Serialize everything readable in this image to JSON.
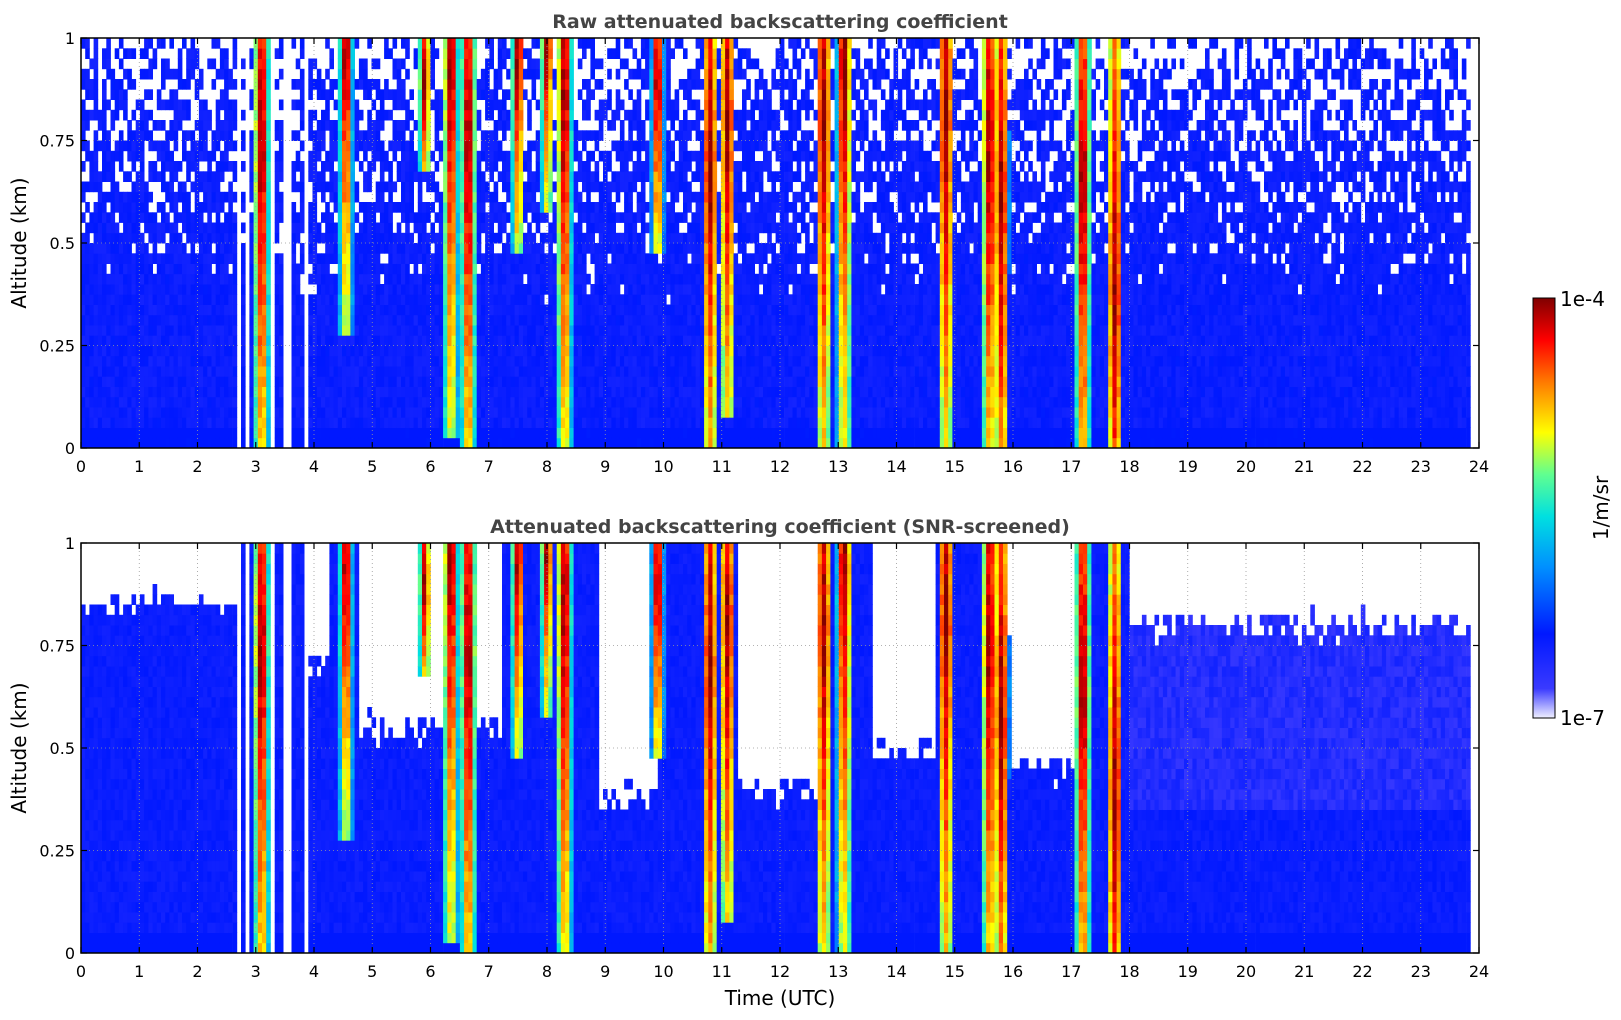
{
  "chart_data": [
    {
      "type": "heatmap",
      "title": "Raw attenuated backscattering coefficient",
      "xlabel": "",
      "ylabel": "Altitude (km)",
      "xlim": [
        0,
        24
      ],
      "ylim": [
        0,
        1
      ],
      "xticks": [
        "0",
        "1",
        "2",
        "3",
        "4",
        "5",
        "6",
        "7",
        "8",
        "9",
        "10",
        "11",
        "12",
        "13",
        "14",
        "15",
        "16",
        "17",
        "18",
        "19",
        "20",
        "21",
        "22",
        "23",
        "24"
      ],
      "yticks": [
        "0",
        "0.25",
        "0.5",
        "0.75",
        "1"
      ],
      "grid": true,
      "color_scale": "log",
      "data_end_hour": 23.85,
      "gap_hours": [
        3.3,
        3.55,
        3.85,
        2.7,
        2.85
      ],
      "cloud_columns": [
        {
          "x": 3.1,
          "top": 1.0,
          "base": 0.0,
          "peak": 0.75
        },
        {
          "x": 4.55,
          "top": 0.95,
          "base": 0.3,
          "peak": 0.95
        },
        {
          "x": 5.9,
          "top": 1.0,
          "base": 0.7,
          "peak": 0.9
        },
        {
          "x": 6.35,
          "top": 1.0,
          "base": 0.05,
          "peak": 0.95
        },
        {
          "x": 6.65,
          "top": 1.0,
          "base": 0.0,
          "peak": 0.75
        },
        {
          "x": 7.5,
          "top": 1.0,
          "base": 0.5,
          "peak": 0.95
        },
        {
          "x": 8.0,
          "top": 1.0,
          "base": 0.6,
          "peak": 0.98
        },
        {
          "x": 8.3,
          "top": 1.0,
          "base": 0.0,
          "peak": 0.85
        },
        {
          "x": 9.9,
          "top": 1.0,
          "base": 0.5,
          "peak": 0.9
        },
        {
          "x": 10.8,
          "top": 1.0,
          "base": 0.0,
          "peak": 0.7
        },
        {
          "x": 11.1,
          "top": 1.0,
          "base": 0.1,
          "peak": 0.8
        },
        {
          "x": 12.75,
          "top": 1.0,
          "base": 0.0,
          "peak": 0.8
        },
        {
          "x": 13.1,
          "top": 1.0,
          "base": 0.0,
          "peak": 0.95
        },
        {
          "x": 14.85,
          "top": 1.0,
          "base": 0.0,
          "peak": 0.8
        },
        {
          "x": 15.6,
          "top": 1.0,
          "base": 0.0,
          "peak": 0.75
        },
        {
          "x": 15.8,
          "top": 1.0,
          "base": 0.0,
          "peak": 0.6
        },
        {
          "x": 17.2,
          "top": 1.0,
          "base": 0.0,
          "peak": 0.65
        },
        {
          "x": 17.75,
          "top": 1.0,
          "base": 0.0,
          "peak": 0.4
        }
      ]
    },
    {
      "type": "heatmap",
      "title": "Attenuated backscattering coefficient (SNR-screened)",
      "xlabel": "Time (UTC)",
      "ylabel": "Altitude (km)",
      "xlim": [
        0,
        24
      ],
      "ylim": [
        0,
        1
      ],
      "xticks": [
        "0",
        "1",
        "2",
        "3",
        "4",
        "5",
        "6",
        "7",
        "8",
        "9",
        "10",
        "11",
        "12",
        "13",
        "14",
        "15",
        "16",
        "17",
        "18",
        "19",
        "20",
        "21",
        "22",
        "23",
        "24"
      ],
      "yticks": [
        "0",
        "0.25",
        "0.5",
        "0.75",
        "1"
      ],
      "grid": true,
      "color_scale": "log",
      "data_end_hour": 23.85,
      "screened_regions": [
        {
          "x0": 0.0,
          "x1": 2.7,
          "min_alt": 0.85
        },
        {
          "x0": 3.9,
          "x1": 4.3,
          "min_alt": 0.7
        },
        {
          "x0": 4.8,
          "x1": 7.2,
          "min_alt": 0.55
        },
        {
          "x0": 8.9,
          "x1": 9.9,
          "min_alt": 0.38
        },
        {
          "x0": 11.3,
          "x1": 12.7,
          "min_alt": 0.4
        },
        {
          "x0": 13.6,
          "x1": 14.7,
          "min_alt": 0.5
        },
        {
          "x0": 15.9,
          "x1": 17.1,
          "min_alt": 0.45
        },
        {
          "x0": 18.0,
          "x1": 23.85,
          "min_alt": 0.8
        }
      ]
    }
  ],
  "colorbar": {
    "label": "1/m/sr",
    "max_label": "1e-4",
    "min_label": "1e-7",
    "colormap": [
      "#f0f0ff",
      "#0000ff",
      "#00bfff",
      "#00ffb0",
      "#ffff00",
      "#ff8000",
      "#ff0000",
      "#800000"
    ]
  },
  "colors": {
    "background_signal": "#1a3cff",
    "near_ground": "#0a22ff",
    "title_color": "#444444"
  }
}
